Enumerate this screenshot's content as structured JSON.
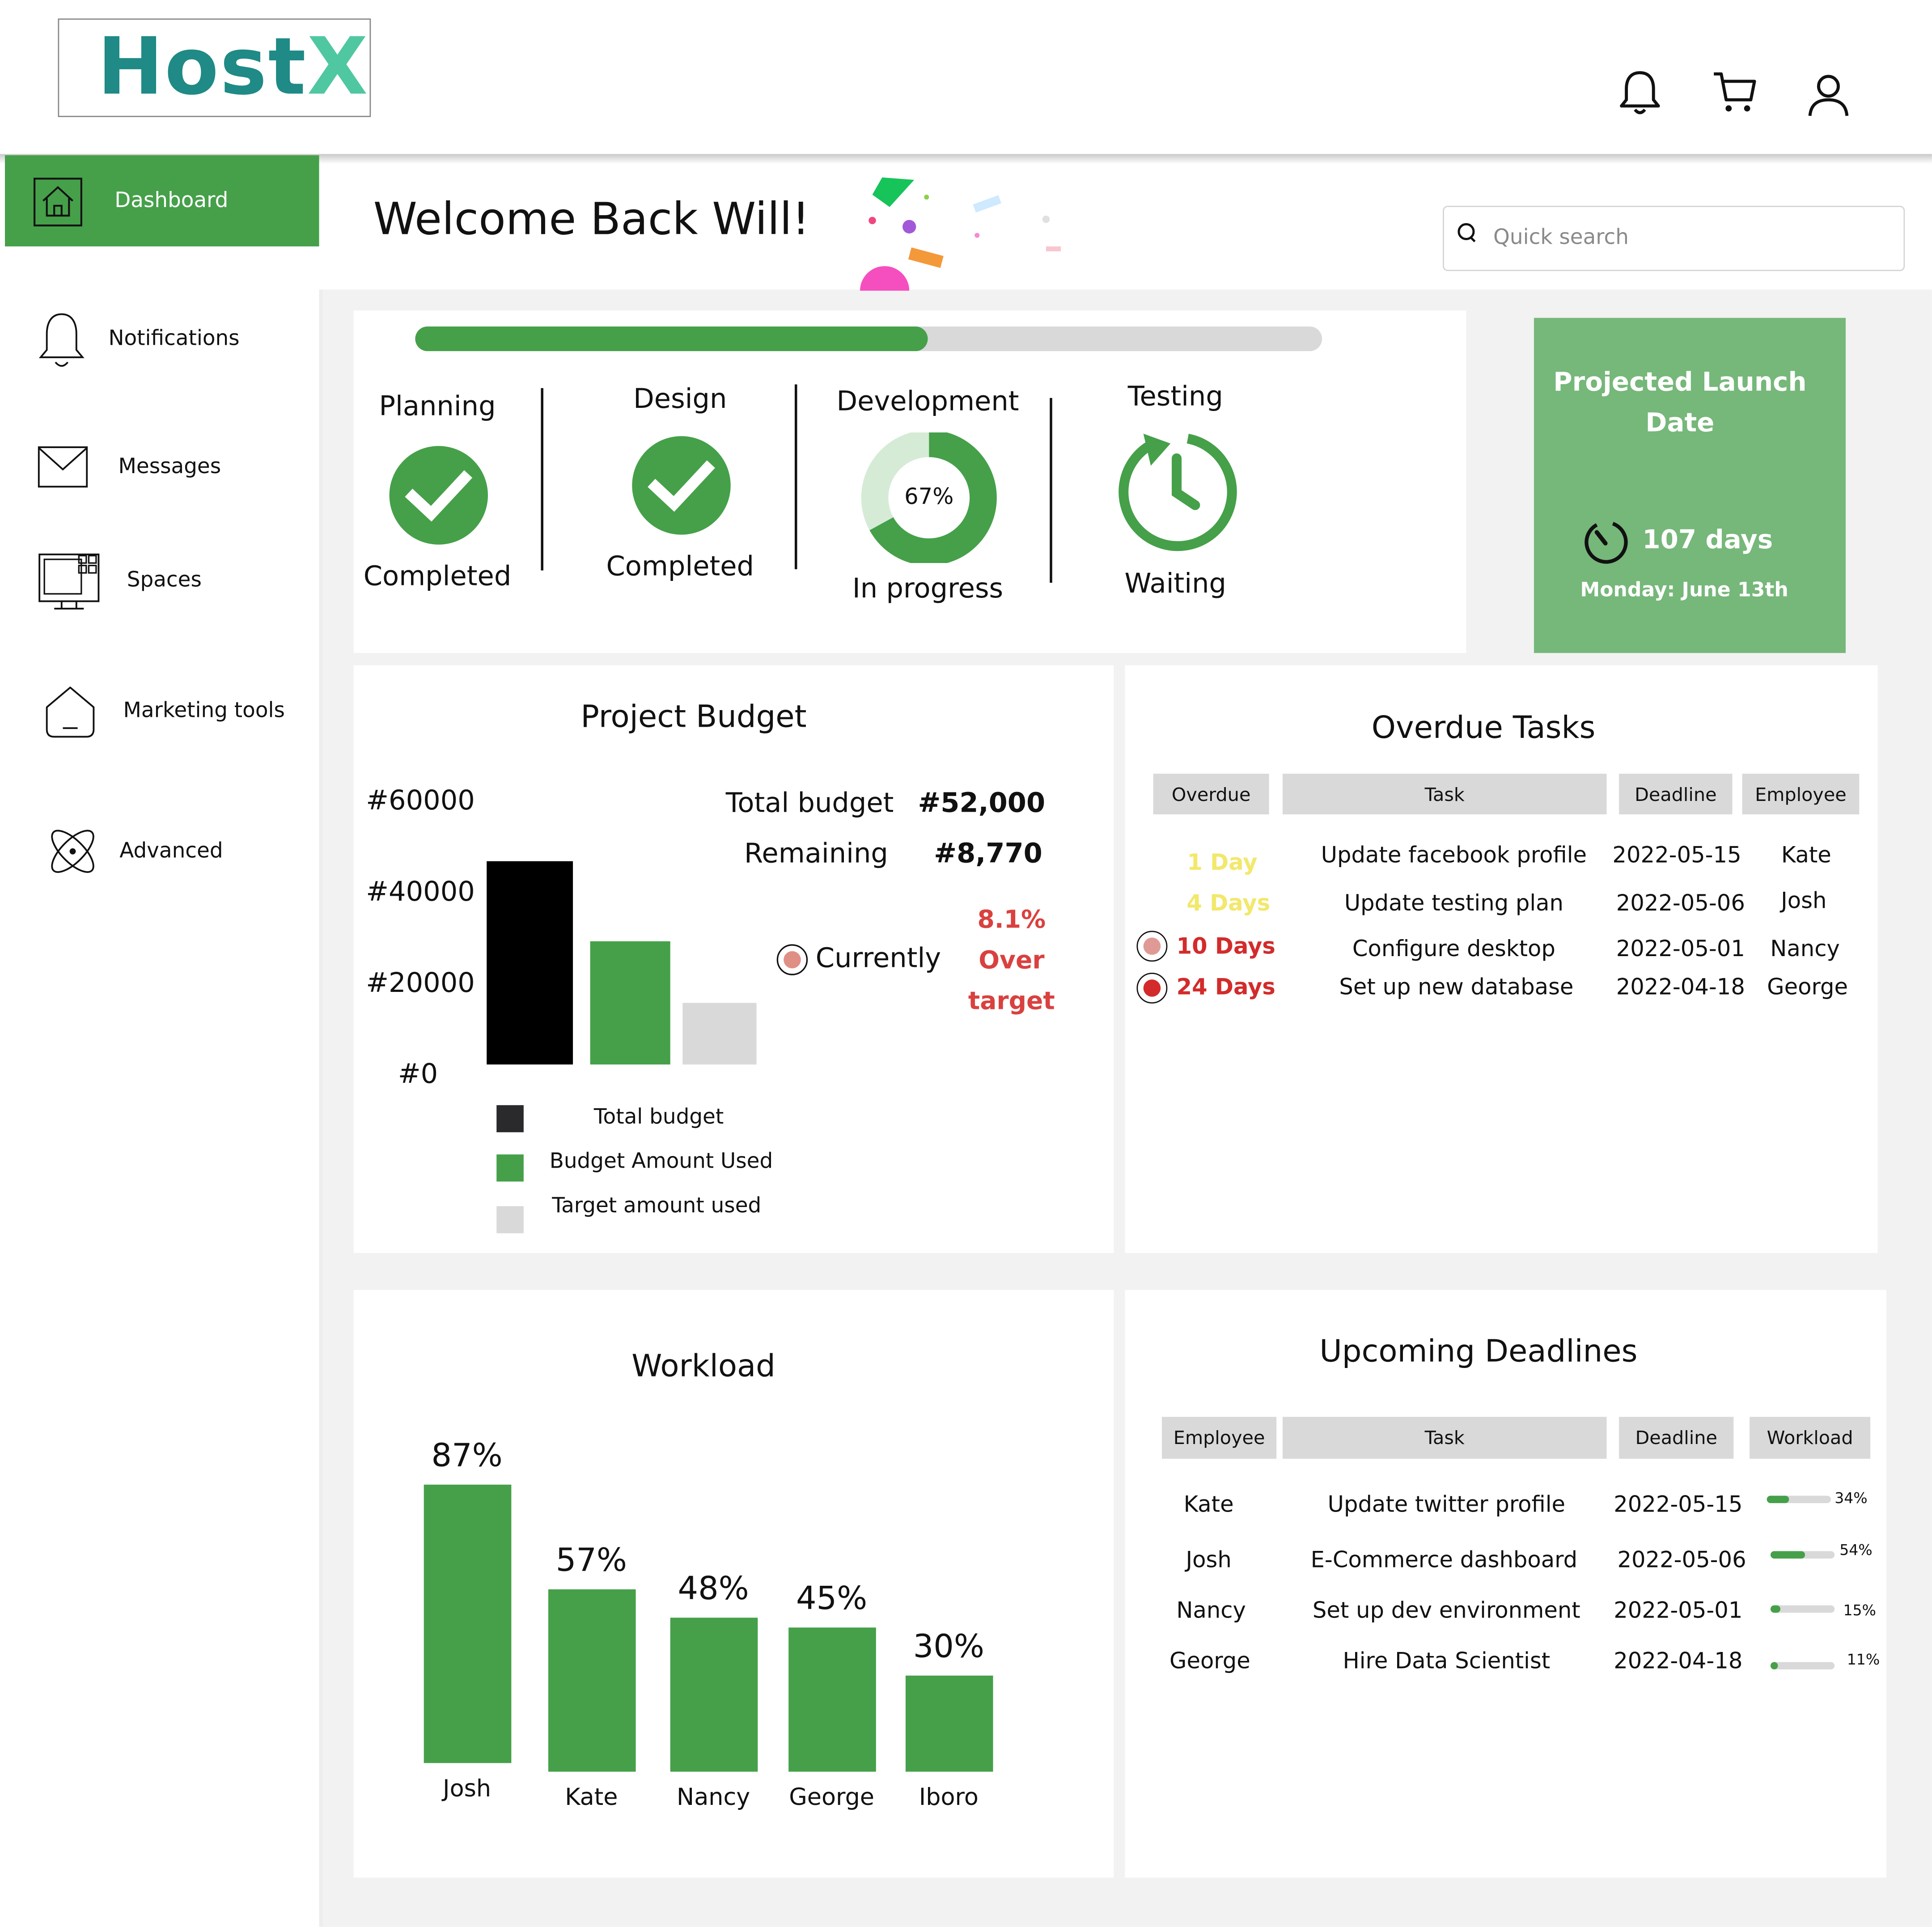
{
  "app": {
    "logo_main": "Host",
    "logo_accent": "X"
  },
  "header": {
    "icons": [
      "bell-icon",
      "cart-icon",
      "user-icon"
    ]
  },
  "sidebar": {
    "items": [
      {
        "label": "Dashboard",
        "icon": "home-icon",
        "active": true
      },
      {
        "label": "Notifications",
        "icon": "bell-icon"
      },
      {
        "label": "Messages",
        "icon": "envelope-icon"
      },
      {
        "label": "Spaces",
        "icon": "monitor-icon"
      },
      {
        "label": "Marketing tools",
        "icon": "house-outline-icon"
      },
      {
        "label": "Advanced",
        "icon": "atom-icon"
      }
    ]
  },
  "welcome": "Welcome Back Will!",
  "search": {
    "placeholder": "Quick search"
  },
  "progress": {
    "overall_fraction": 0.565,
    "stages": [
      {
        "name": "Planning",
        "status": "Completed"
      },
      {
        "name": "Design",
        "status": "Completed"
      },
      {
        "name": "Development",
        "status": "In progress",
        "percent_label": "67%",
        "percent": 0.67
      },
      {
        "name": "Testing",
        "status": "Waiting"
      }
    ]
  },
  "launch": {
    "title_line1": "Projected Launch",
    "title_line2": "Date",
    "days": "107 days",
    "date": "Monday: June 13th"
  },
  "budget": {
    "title": "Project Budget",
    "total_label": "Total budget",
    "total_value": "#52,000",
    "remaining_label": "Remaining",
    "remaining_value": "#8,770",
    "currently_label": "Currently",
    "over_line1": "8.1%",
    "over_line2": "Over",
    "over_line3": "target",
    "legend": [
      "Total budget",
      "Budget Amount Used",
      "Target amount used"
    ]
  },
  "chart_data": [
    {
      "type": "bar",
      "title": "Project Budget",
      "categories": [
        "Total budget",
        "Budget Amount Used",
        "Target amount used"
      ],
      "values": [
        52000,
        31500,
        15700
      ],
      "yticks": [
        "#60000",
        "#40000",
        "#20000",
        "#0"
      ],
      "ylim": [
        0,
        60000
      ],
      "colors": [
        "#000000",
        "#45a049",
        "#d9d9d9"
      ],
      "legend": "bottom"
    },
    {
      "type": "bar",
      "title": "Workload",
      "categories": [
        "Josh",
        "Kate",
        "Nancy",
        "George",
        "Iboro"
      ],
      "values": [
        87,
        57,
        48,
        45,
        30
      ],
      "labels": [
        "87%",
        "57%",
        "48%",
        "45%",
        "30%"
      ],
      "ylim": [
        0,
        100
      ],
      "color": "#45a049"
    }
  ],
  "overdue": {
    "title": "Overdue Tasks",
    "headers": [
      "Overdue",
      "Task",
      "Deadline",
      "Employee"
    ],
    "rows": [
      {
        "overdue": "1 Day",
        "task": "Update facebook profile",
        "deadline": "2022-05-15",
        "employee": "Kate",
        "color": "#f2e86b",
        "marker": "none"
      },
      {
        "overdue": "4 Days",
        "task": "Update testing plan",
        "deadline": "2022-05-06",
        "employee": "Josh",
        "color": "#f2e86b",
        "marker": "none"
      },
      {
        "overdue": "10 Days",
        "task": "Configure desktop",
        "deadline": "2022-05-01",
        "employee": "Nancy",
        "color": "#d32b2b",
        "marker": "light"
      },
      {
        "overdue": "24 Days",
        "task": "Set up new database",
        "deadline": "2022-04-18",
        "employee": "George",
        "color": "#d32b2b",
        "marker": "dark"
      }
    ]
  },
  "workload": {
    "title": "Workload"
  },
  "upcoming": {
    "title": "Upcoming Deadlines",
    "headers": [
      "Employee",
      "Task",
      "Deadline",
      "Workload"
    ],
    "rows": [
      {
        "employee": "Kate",
        "task": "Update twitter profile",
        "deadline": "2022-05-15",
        "workload": "34%",
        "fraction": 0.34
      },
      {
        "employee": "Josh",
        "task": "E-Commerce dashboard",
        "deadline": "2022-05-06",
        "workload": "54%",
        "fraction": 0.54
      },
      {
        "employee": "Nancy",
        "task": "Set up dev environment",
        "deadline": "2022-05-01",
        "workload": "15%",
        "fraction": 0.15
      },
      {
        "employee": "George",
        "task": "Hire Data Scientist",
        "deadline": "2022-04-18",
        "workload": "11%",
        "fraction": 0.11
      }
    ]
  },
  "colors": {
    "brand_green": "#45a049",
    "launch_green": "#76b77a",
    "logo_teal": "#1f8a86",
    "danger": "#d32b2b",
    "warning": "#f2e86b"
  }
}
